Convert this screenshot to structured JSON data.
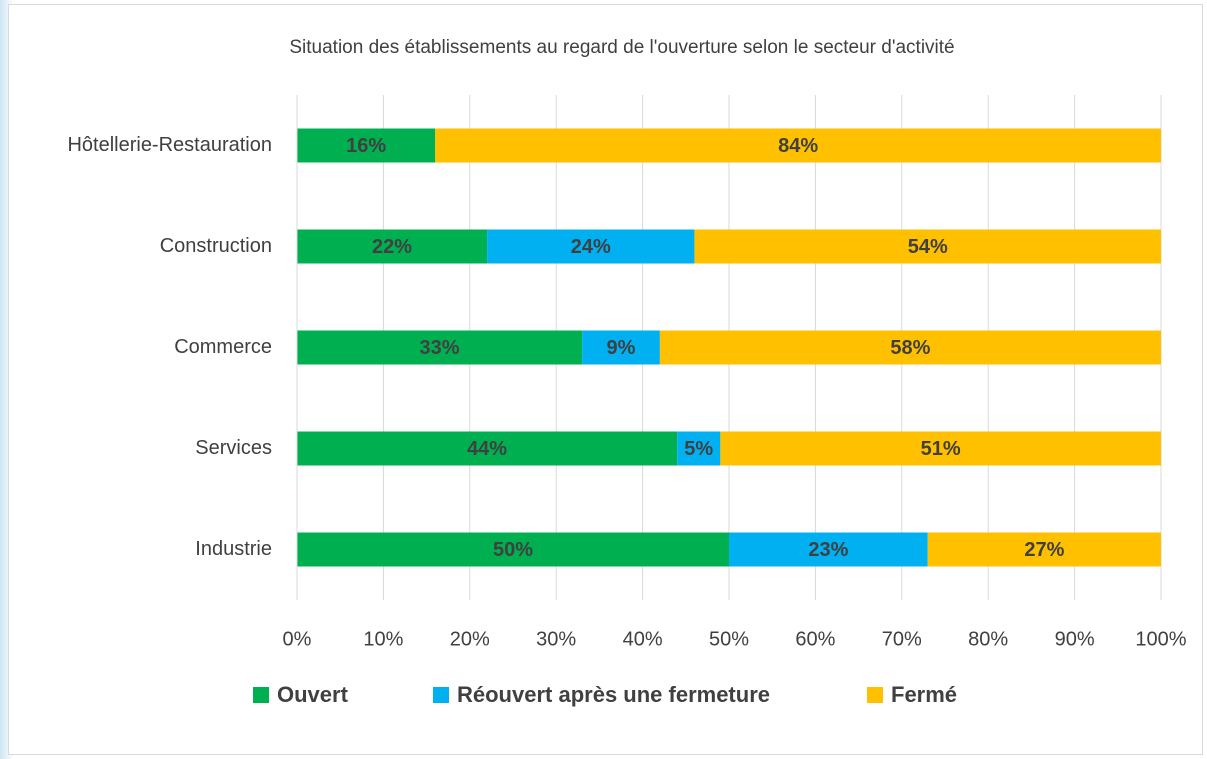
{
  "chart_data": {
    "type": "stacked_barh",
    "title": "Situation des établissements au regard de l'ouverture selon le secteur d'activité",
    "categories": [
      "Hôtellerie-Restauration",
      "Construction",
      "Commerce",
      "Services",
      "Industrie"
    ],
    "series": [
      {
        "name": "Ouvert",
        "color": "#00b050",
        "values": [
          16,
          22,
          33,
          44,
          50
        ],
        "value_labels": [
          "16%",
          "22%",
          "33%",
          "44%",
          "50%"
        ]
      },
      {
        "name": "Réouvert après une fermeture",
        "color": "#00b0f0",
        "values": [
          null,
          24,
          9,
          5,
          23
        ],
        "value_labels": [
          null,
          "24%",
          "9%",
          "5%",
          "23%"
        ]
      },
      {
        "name": "Fermé",
        "color": "#ffc000",
        "values": [
          84,
          54,
          58,
          51,
          27
        ],
        "value_labels": [
          "84%",
          "54%",
          "58%",
          "51%",
          "27%"
        ]
      }
    ],
    "xlim": [
      0,
      100
    ],
    "xticks": [
      {
        "value": 0,
        "label": "0%"
      },
      {
        "value": 10,
        "label": "10%"
      },
      {
        "value": 20,
        "label": "20%"
      },
      {
        "value": 30,
        "label": "30%"
      },
      {
        "value": 40,
        "label": "40%"
      },
      {
        "value": 50,
        "label": "50%"
      },
      {
        "value": 60,
        "label": "60%"
      },
      {
        "value": 70,
        "label": "70%"
      },
      {
        "value": 80,
        "label": "80%"
      },
      {
        "value": 90,
        "label": "90%"
      },
      {
        "value": 100,
        "label": "100%"
      }
    ],
    "grid": true,
    "legend": "bottom"
  }
}
